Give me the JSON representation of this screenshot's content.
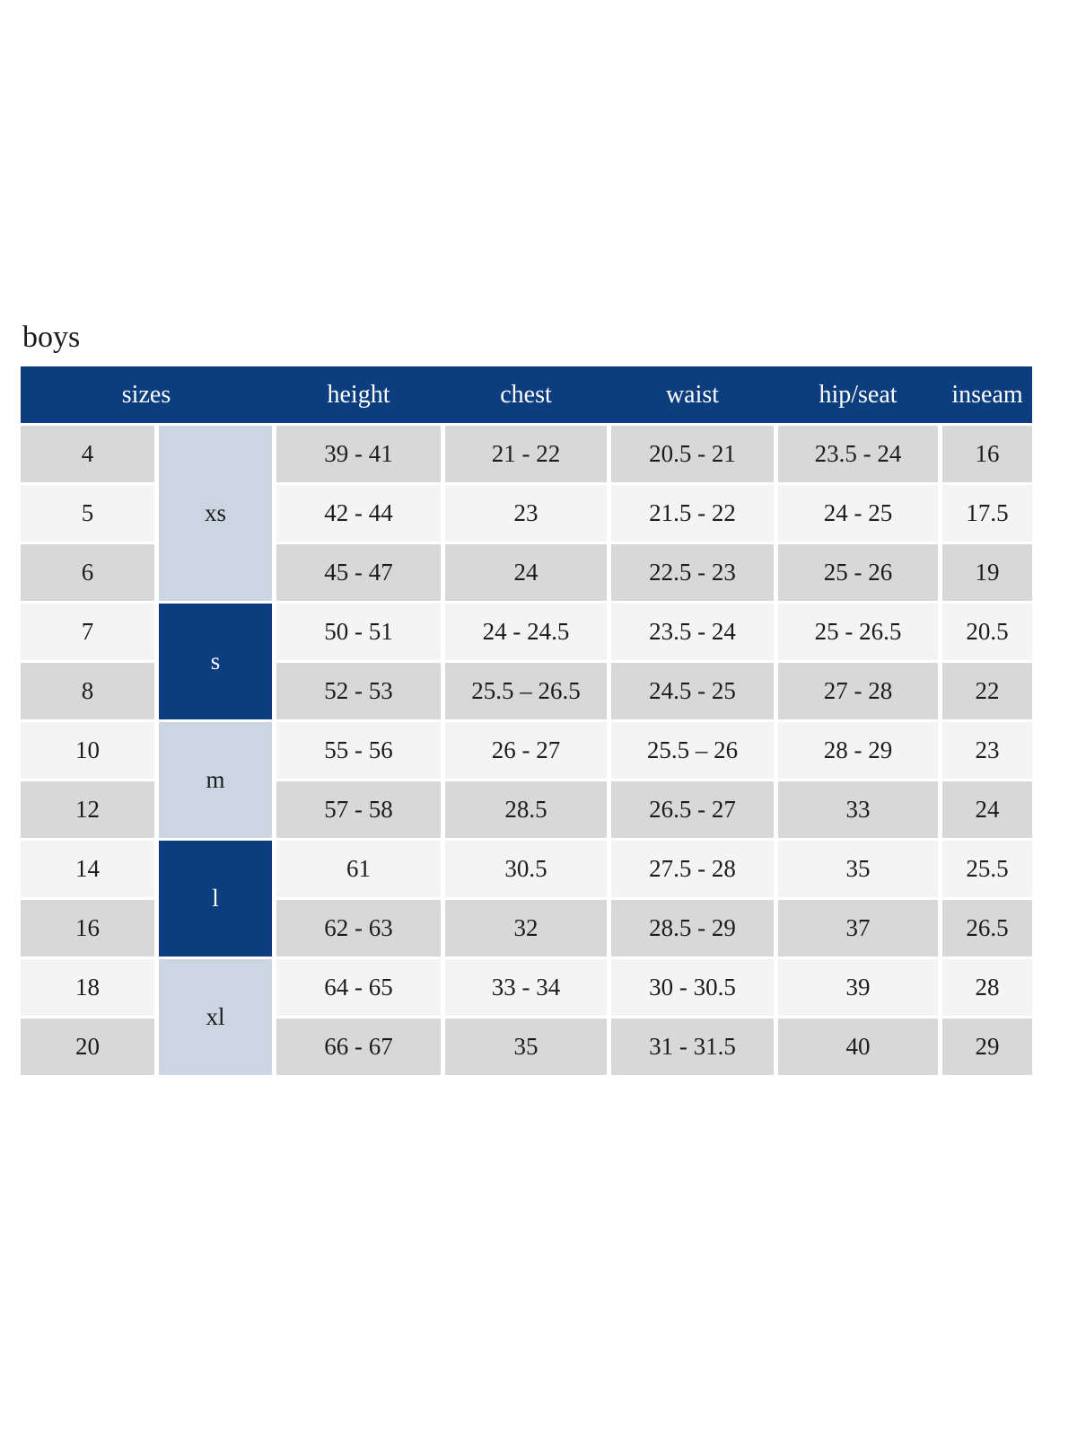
{
  "page": {
    "title": "boys"
  },
  "colors": {
    "header_bg": "#0b3d7f",
    "header_text": "#ffffff",
    "group_dark_bg": "#0b3d7f",
    "group_dark_text": "#ffffff",
    "group_light_bg": "#ccd6e3",
    "row_gray_bg": "#d8d8d8",
    "row_light_bg": "#f4f4f4",
    "body_text": "#1c1c1c"
  },
  "table": {
    "columns": [
      "sizes",
      "height",
      "chest",
      "waist",
      "hip/seat",
      "inseam"
    ],
    "groups": [
      {
        "label": "xs",
        "tone": "light",
        "rows": [
          {
            "size": "4",
            "height": "39 - 41",
            "chest": "21 - 22",
            "waist": "20.5 - 21",
            "hip_seat": "23.5 - 24",
            "inseam": "16"
          },
          {
            "size": "5",
            "height": "42 - 44",
            "chest": "23",
            "waist": "21.5 - 22",
            "hip_seat": "24 - 25",
            "inseam": "17.5"
          },
          {
            "size": "6",
            "height": "45 - 47",
            "chest": "24",
            "waist": "22.5 - 23",
            "hip_seat": "25 - 26",
            "inseam": "19"
          }
        ]
      },
      {
        "label": "s",
        "tone": "dark",
        "rows": [
          {
            "size": "7",
            "height": "50 - 51",
            "chest": "24 - 24.5",
            "waist": "23.5 - 24",
            "hip_seat": "25 - 26.5",
            "inseam": "20.5"
          },
          {
            "size": "8",
            "height": "52 - 53",
            "chest": "25.5 – 26.5",
            "waist": "24.5 - 25",
            "hip_seat": "27 - 28",
            "inseam": "22"
          }
        ]
      },
      {
        "label": "m",
        "tone": "light",
        "rows": [
          {
            "size": "10",
            "height": "55 - 56",
            "chest": "26 - 27",
            "waist": "25.5 – 26",
            "hip_seat": "28 - 29",
            "inseam": "23"
          },
          {
            "size": "12",
            "height": "57 - 58",
            "chest": "28.5",
            "waist": "26.5 - 27",
            "hip_seat": "33",
            "inseam": "24"
          }
        ]
      },
      {
        "label": "l",
        "tone": "dark",
        "rows": [
          {
            "size": "14",
            "height": "61",
            "chest": "30.5",
            "waist": "27.5 - 28",
            "hip_seat": "35",
            "inseam": "25.5"
          },
          {
            "size": "16",
            "height": "62 - 63",
            "chest": "32",
            "waist": "28.5 - 29",
            "hip_seat": "37",
            "inseam": "26.5"
          }
        ]
      },
      {
        "label": "xl",
        "tone": "light",
        "rows": [
          {
            "size": "18",
            "height": "64 - 65",
            "chest": "33 - 34",
            "waist": "30 - 30.5",
            "hip_seat": "39",
            "inseam": "28"
          },
          {
            "size": "20",
            "height": "66 - 67",
            "chest": "35",
            "waist": "31 - 31.5",
            "hip_seat": "40",
            "inseam": "29"
          }
        ]
      }
    ]
  }
}
